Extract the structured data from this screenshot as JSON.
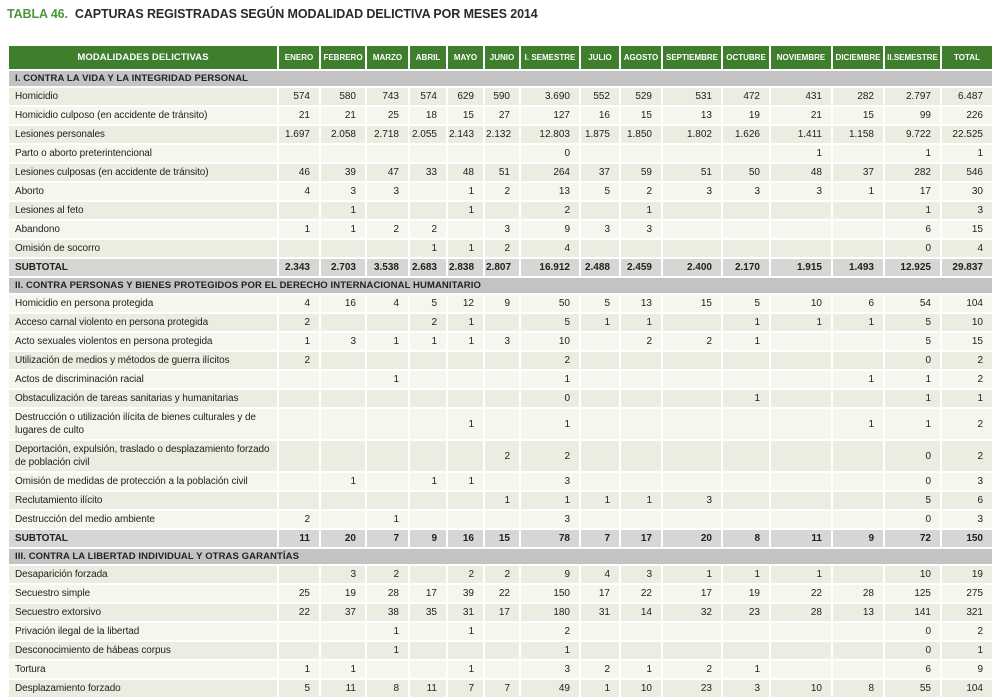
{
  "title": {
    "label": "TABLA 46.",
    "text": "CAPTURAS REGISTRADAS SEGÚN MODALIDAD DELICTIVA POR MESES 2014"
  },
  "colors": {
    "header_green": "#3e7e2c",
    "title_green": "#4c9739",
    "section_gray": "#c3c3c4",
    "subtotal_gray": "#d6d6d4",
    "row_stripe_dark": "#e9eee1",
    "row_stripe_light": "#f4f7ee"
  },
  "table": {
    "header": [
      "MODALIDADES DELICTIVAS",
      "ENERO",
      "FEBRERO",
      "MARZO",
      "ABRIL",
      "MAYO",
      "JUNIO",
      "I. SEMESTRE",
      "JULIO",
      "AGOSTO",
      "SEPTIEMBRE",
      "OCTUBRE",
      "NOVIEMBRE",
      "DICIEMBRE",
      "II.SEMESTRE",
      "TOTAL"
    ],
    "sections": [
      {
        "title": "I. CONTRA LA VIDA Y LA INTEGRIDAD PERSONAL",
        "rows": [
          {
            "label": "Homicidio",
            "values": [
              "574",
              "580",
              "743",
              "574",
              "629",
              "590",
              "3.690",
              "552",
              "529",
              "531",
              "472",
              "431",
              "282",
              "2.797",
              "6.487"
            ]
          },
          {
            "label": "Homicidio culposo (en accidente de tránsito)",
            "values": [
              "21",
              "21",
              "25",
              "18",
              "15",
              "27",
              "127",
              "16",
              "15",
              "13",
              "19",
              "21",
              "15",
              "99",
              "226"
            ]
          },
          {
            "label": "Lesiones personales",
            "values": [
              "1.697",
              "2.058",
              "2.718",
              "2.055",
              "2.143",
              "2.132",
              "12.803",
              "1.875",
              "1.850",
              "1.802",
              "1.626",
              "1.411",
              "1.158",
              "9.722",
              "22.525"
            ]
          },
          {
            "label": "Parto o aborto preterintencional",
            "values": [
              "",
              "",
              "",
              "",
              "",
              "",
              "0",
              "",
              "",
              "",
              "",
              "1",
              "",
              "1",
              "1"
            ]
          },
          {
            "label": "Lesiones culposas (en accidente de tránsito)",
            "values": [
              "46",
              "39",
              "47",
              "33",
              "48",
              "51",
              "264",
              "37",
              "59",
              "51",
              "50",
              "48",
              "37",
              "282",
              "546"
            ]
          },
          {
            "label": "Aborto",
            "values": [
              "4",
              "3",
              "3",
              "",
              "1",
              "2",
              "13",
              "5",
              "2",
              "3",
              "3",
              "3",
              "1",
              "17",
              "30"
            ]
          },
          {
            "label": "Lesiones al feto",
            "values": [
              "",
              "1",
              "",
              "",
              "1",
              "",
              "2",
              "",
              "1",
              "",
              "",
              "",
              "",
              "1",
              "3"
            ]
          },
          {
            "label": "Abandono",
            "values": [
              "1",
              "1",
              "2",
              "2",
              "",
              "3",
              "9",
              "3",
              "3",
              "",
              "",
              "",
              "",
              "6",
              "15"
            ]
          },
          {
            "label": "Omisión de socorro",
            "values": [
              "",
              "",
              "",
              "1",
              "1",
              "2",
              "4",
              "",
              "",
              "",
              "",
              "",
              "",
              "0",
              "4"
            ]
          }
        ],
        "subtotal": {
          "label": "SUBTOTAL",
          "values": [
            "2.343",
            "2.703",
            "3.538",
            "2.683",
            "2.838",
            "2.807",
            "16.912",
            "2.488",
            "2.459",
            "2.400",
            "2.170",
            "1.915",
            "1.493",
            "12.925",
            "29.837"
          ]
        }
      },
      {
        "title": "II. CONTRA PERSONAS Y BIENES PROTEGIDOS POR EL DERECHO INTERNACIONAL HUMANITARIO",
        "rows": [
          {
            "label": "Homicidio en persona protegida",
            "values": [
              "4",
              "16",
              "4",
              "5",
              "12",
              "9",
              "50",
              "5",
              "13",
              "15",
              "5",
              "10",
              "6",
              "54",
              "104"
            ]
          },
          {
            "label": "Acceso carnal violento en persona protegida",
            "values": [
              "2",
              "",
              "",
              "2",
              "1",
              "",
              "5",
              "1",
              "1",
              "",
              "1",
              "1",
              "1",
              "5",
              "10"
            ]
          },
          {
            "label": "Acto sexuales violentos en persona protegida",
            "values": [
              "1",
              "3",
              "1",
              "1",
              "1",
              "3",
              "10",
              "",
              "2",
              "2",
              "1",
              "",
              "",
              "5",
              "15"
            ]
          },
          {
            "label": "Utilización de medios y métodos de guerra ilícitos",
            "values": [
              "2",
              "",
              "",
              "",
              "",
              "",
              "2",
              "",
              "",
              "",
              "",
              "",
              "",
              "0",
              "2"
            ]
          },
          {
            "label": "Actos de discriminación racial",
            "values": [
              "",
              "",
              "1",
              "",
              "",
              "",
              "1",
              "",
              "",
              "",
              "",
              "",
              "1",
              "1",
              "2"
            ]
          },
          {
            "label": "Obstaculización de tareas sanitarias y humanitarias",
            "values": [
              "",
              "",
              "",
              "",
              "",
              "",
              "0",
              "",
              "",
              "",
              "1",
              "",
              "",
              "1",
              "1"
            ]
          },
          {
            "label": "Destrucción o utilización ilícita de bienes culturales y de lugares de culto",
            "values": [
              "",
              "",
              "",
              "",
              "1",
              "",
              "1",
              "",
              "",
              "",
              "",
              "",
              "1",
              "1",
              "2"
            ]
          },
          {
            "label": "Deportación, expulsión, traslado o desplazamiento forzado de población civil",
            "values": [
              "",
              "",
              "",
              "",
              "",
              "2",
              "2",
              "",
              "",
              "",
              "",
              "",
              "",
              "0",
              "2"
            ]
          },
          {
            "label": "Omisión de medidas de protección a la población civil",
            "values": [
              "",
              "1",
              "",
              "1",
              "1",
              "",
              "3",
              "",
              "",
              "",
              "",
              "",
              "",
              "0",
              "3"
            ]
          },
          {
            "label": "Reclutamiento ilícito",
            "values": [
              "",
              "",
              "",
              "",
              "",
              "1",
              "1",
              "1",
              "1",
              "3",
              "",
              "",
              "",
              "5",
              "6"
            ]
          },
          {
            "label": "Destrucción del medio ambiente",
            "values": [
              "2",
              "",
              "1",
              "",
              "",
              "",
              "3",
              "",
              "",
              "",
              "",
              "",
              "",
              "0",
              "3"
            ]
          }
        ],
        "subtotal": {
          "label": "SUBTOTAL",
          "values": [
            "11",
            "20",
            "7",
            "9",
            "16",
            "15",
            "78",
            "7",
            "17",
            "20",
            "8",
            "11",
            "9",
            "72",
            "150"
          ]
        }
      },
      {
        "title": "III. CONTRA LA LIBERTAD INDIVIDUAL Y OTRAS GARANTÍAS",
        "rows": [
          {
            "label": "Desaparición forzada",
            "values": [
              "",
              "3",
              "2",
              "",
              "2",
              "2",
              "9",
              "4",
              "3",
              "1",
              "1",
              "1",
              "",
              "10",
              "19"
            ]
          },
          {
            "label": "Secuestro simple",
            "values": [
              "25",
              "19",
              "28",
              "17",
              "39",
              "22",
              "150",
              "17",
              "22",
              "17",
              "19",
              "22",
              "28",
              "125",
              "275"
            ]
          },
          {
            "label": "Secuestro extorsivo",
            "values": [
              "22",
              "37",
              "38",
              "35",
              "31",
              "17",
              "180",
              "31",
              "14",
              "32",
              "23",
              "28",
              "13",
              "141",
              "321"
            ]
          },
          {
            "label": "Privación ilegal de la libertad",
            "values": [
              "",
              "",
              "1",
              "",
              "1",
              "",
              "2",
              "",
              "",
              "",
              "",
              "",
              "",
              "0",
              "2"
            ]
          },
          {
            "label": "Desconocimiento de hábeas corpus",
            "values": [
              "",
              "",
              "1",
              "",
              "",
              "",
              "1",
              "",
              "",
              "",
              "",
              "",
              "",
              "0",
              "1"
            ]
          },
          {
            "label": "Tortura",
            "values": [
              "1",
              "1",
              "",
              "",
              "1",
              "",
              "3",
              "2",
              "1",
              "2",
              "1",
              "",
              "",
              "6",
              "9"
            ]
          },
          {
            "label": "Desplazamiento forzado",
            "values": [
              "5",
              "11",
              "8",
              "11",
              "7",
              "7",
              "49",
              "1",
              "10",
              "23",
              "3",
              "10",
              "8",
              "55",
              "104"
            ]
          }
        ],
        "subtotal": null
      }
    ]
  }
}
